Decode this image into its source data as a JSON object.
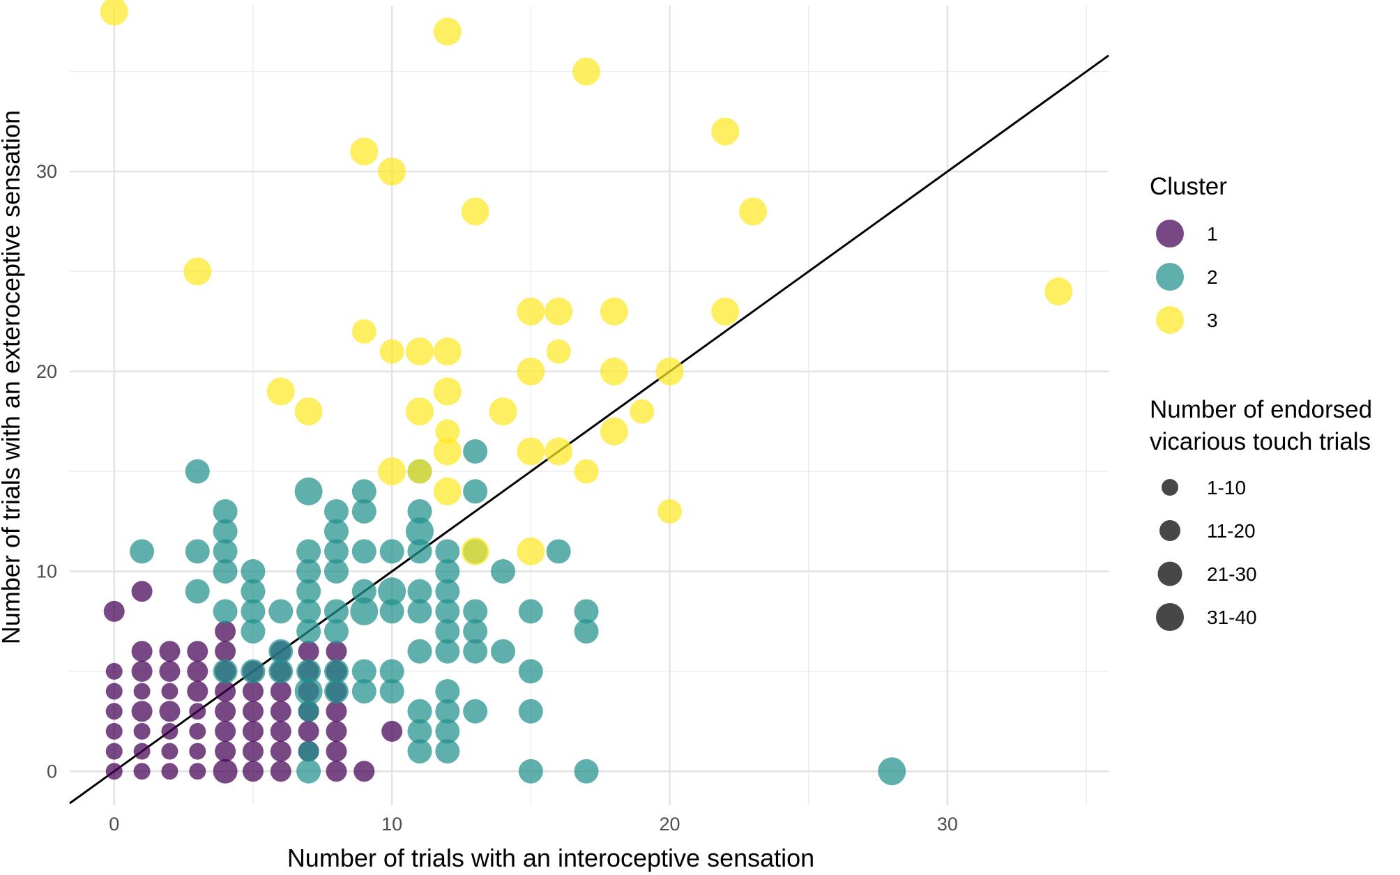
{
  "chart_data": {
    "type": "scatter",
    "title": "",
    "xlabel": "Number of trials with an interoceptive sensation",
    "ylabel": "Number of trials with an exteroceptive sensation",
    "xlim": [
      -1.6,
      35.8
    ],
    "ylim": [
      -1.7,
      38.3
    ],
    "xticks": [
      0,
      10,
      20,
      30
    ],
    "yticks": [
      0,
      10,
      20,
      30
    ],
    "grid": true,
    "reference_line": {
      "slope": 1,
      "intercept": 0,
      "color": "#000000"
    },
    "legends": {
      "color": {
        "title": "Cluster",
        "entries": [
          {
            "label": "1",
            "color": "#440154"
          },
          {
            "label": "2",
            "color": "#21908C"
          },
          {
            "label": "3",
            "color": "#FDE725"
          }
        ]
      },
      "size": {
        "title_lines": [
          "Number of endorsed",
          "vicarious touch trials"
        ],
        "entries": [
          {
            "label": "1-10",
            "size": 1
          },
          {
            "label": "11-20",
            "size": 2
          },
          {
            "label": "21-30",
            "size": 3
          },
          {
            "label": "31-40",
            "size": 4
          }
        ]
      }
    },
    "series": [
      {
        "name": "Cluster 1",
        "color": "#440154",
        "points": [
          [
            0,
            8,
            2
          ],
          [
            0,
            5,
            1
          ],
          [
            0,
            4,
            1
          ],
          [
            0,
            3,
            1
          ],
          [
            0,
            2,
            1
          ],
          [
            0,
            1,
            1
          ],
          [
            0,
            0,
            1
          ],
          [
            1,
            9,
            2
          ],
          [
            1,
            6,
            2
          ],
          [
            1,
            5,
            2
          ],
          [
            1,
            4,
            1
          ],
          [
            1,
            3,
            2
          ],
          [
            1,
            2,
            1
          ],
          [
            1,
            1,
            1
          ],
          [
            1,
            0,
            1
          ],
          [
            2,
            6,
            2
          ],
          [
            2,
            5,
            2
          ],
          [
            2,
            4,
            1
          ],
          [
            2,
            3,
            2
          ],
          [
            2,
            2,
            1
          ],
          [
            2,
            1,
            1
          ],
          [
            2,
            0,
            1
          ],
          [
            3,
            6,
            2
          ],
          [
            3,
            5,
            2
          ],
          [
            3,
            4,
            2
          ],
          [
            3,
            3,
            1
          ],
          [
            3,
            2,
            1
          ],
          [
            3,
            1,
            1
          ],
          [
            3,
            0,
            1
          ],
          [
            4,
            7,
            2
          ],
          [
            4,
            6,
            2
          ],
          [
            4,
            5,
            2
          ],
          [
            4,
            4,
            2
          ],
          [
            4,
            3,
            2
          ],
          [
            4,
            2,
            2
          ],
          [
            4,
            1,
            2
          ],
          [
            4,
            0,
            3
          ],
          [
            5,
            5,
            2
          ],
          [
            5,
            4,
            2
          ],
          [
            5,
            3,
            2
          ],
          [
            5,
            2,
            2
          ],
          [
            5,
            1,
            2
          ],
          [
            5,
            0,
            2
          ],
          [
            6,
            6,
            2
          ],
          [
            6,
            5,
            2
          ],
          [
            6,
            4,
            2
          ],
          [
            6,
            3,
            2
          ],
          [
            6,
            2,
            2
          ],
          [
            6,
            1,
            2
          ],
          [
            6,
            0,
            2
          ],
          [
            7,
            6,
            2
          ],
          [
            7,
            5,
            2
          ],
          [
            7,
            4,
            2
          ],
          [
            7,
            3,
            2
          ],
          [
            7,
            2,
            2
          ],
          [
            7,
            1,
            2
          ],
          [
            8,
            6,
            2
          ],
          [
            8,
            5,
            2
          ],
          [
            8,
            4,
            2
          ],
          [
            8,
            3,
            2
          ],
          [
            8,
            2,
            2
          ],
          [
            8,
            1,
            2
          ],
          [
            8,
            0,
            2
          ],
          [
            9,
            0,
            2
          ],
          [
            10,
            2,
            2
          ]
        ]
      },
      {
        "name": "Cluster 2",
        "color": "#21908C",
        "points": [
          [
            1,
            11,
            3
          ],
          [
            3,
            15,
            3
          ],
          [
            3,
            11,
            3
          ],
          [
            3,
            9,
            3
          ],
          [
            4,
            13,
            3
          ],
          [
            4,
            12,
            3
          ],
          [
            4,
            11,
            3
          ],
          [
            4,
            10,
            3
          ],
          [
            4,
            8,
            3
          ],
          [
            4,
            5,
            3
          ],
          [
            5,
            10,
            3
          ],
          [
            5,
            9,
            3
          ],
          [
            5,
            8,
            3
          ],
          [
            5,
            7,
            3
          ],
          [
            5,
            5,
            3
          ],
          [
            6,
            8,
            3
          ],
          [
            6,
            6,
            3
          ],
          [
            6,
            5,
            3
          ],
          [
            7,
            14,
            4
          ],
          [
            7,
            11,
            3
          ],
          [
            7,
            10,
            3
          ],
          [
            7,
            9,
            3
          ],
          [
            7,
            8,
            3
          ],
          [
            7,
            7,
            3
          ],
          [
            7,
            5,
            3
          ],
          [
            7,
            4,
            4
          ],
          [
            7,
            3,
            2
          ],
          [
            7,
            1,
            2
          ],
          [
            7,
            0,
            3
          ],
          [
            8,
            13,
            3
          ],
          [
            8,
            12,
            3
          ],
          [
            8,
            11,
            3
          ],
          [
            8,
            10,
            3
          ],
          [
            8,
            8,
            3
          ],
          [
            8,
            7,
            3
          ],
          [
            8,
            5,
            3
          ],
          [
            8,
            4,
            3
          ],
          [
            9,
            14,
            3
          ],
          [
            9,
            13,
            3
          ],
          [
            9,
            11,
            3
          ],
          [
            9,
            9,
            3
          ],
          [
            9,
            8,
            4
          ],
          [
            9,
            5,
            3
          ],
          [
            9,
            4,
            3
          ],
          [
            10,
            11,
            3
          ],
          [
            10,
            9,
            4
          ],
          [
            10,
            8,
            3
          ],
          [
            10,
            5,
            3
          ],
          [
            10,
            4,
            3
          ],
          [
            11,
            15,
            3
          ],
          [
            11,
            13,
            3
          ],
          [
            11,
            12,
            4
          ],
          [
            11,
            11,
            3
          ],
          [
            11,
            9,
            3
          ],
          [
            11,
            8,
            3
          ],
          [
            11,
            6,
            3
          ],
          [
            11,
            3,
            3
          ],
          [
            11,
            2,
            3
          ],
          [
            11,
            1,
            3
          ],
          [
            12,
            11,
            3
          ],
          [
            12,
            10,
            3
          ],
          [
            12,
            9,
            3
          ],
          [
            12,
            8,
            3
          ],
          [
            12,
            7,
            3
          ],
          [
            12,
            6,
            3
          ],
          [
            12,
            4,
            3
          ],
          [
            12,
            3,
            3
          ],
          [
            12,
            2,
            3
          ],
          [
            12,
            1,
            3
          ],
          [
            13,
            16,
            3
          ],
          [
            13,
            14,
            3
          ],
          [
            13,
            11,
            3
          ],
          [
            13,
            8,
            3
          ],
          [
            13,
            7,
            3
          ],
          [
            13,
            6,
            3
          ],
          [
            13,
            3,
            3
          ],
          [
            14,
            10,
            3
          ],
          [
            14,
            6,
            3
          ],
          [
            15,
            8,
            3
          ],
          [
            15,
            5,
            3
          ],
          [
            15,
            3,
            3
          ],
          [
            15,
            0,
            3
          ],
          [
            16,
            11,
            3
          ],
          [
            17,
            8,
            3
          ],
          [
            17,
            7,
            3
          ],
          [
            17,
            0,
            3
          ],
          [
            28,
            0,
            4
          ]
        ]
      },
      {
        "name": "Cluster 3",
        "color": "#FDE725",
        "points": [
          [
            0,
            38,
            4
          ],
          [
            3,
            25,
            4
          ],
          [
            6,
            19,
            4
          ],
          [
            7,
            18,
            4
          ],
          [
            9,
            31,
            4
          ],
          [
            9,
            22,
            3
          ],
          [
            10,
            30,
            4
          ],
          [
            10,
            21,
            3
          ],
          [
            10,
            15,
            4
          ],
          [
            11,
            21,
            4
          ],
          [
            11,
            18,
            4
          ],
          [
            11,
            15,
            3
          ],
          [
            12,
            37,
            4
          ],
          [
            12,
            21,
            4
          ],
          [
            12,
            19,
            4
          ],
          [
            12,
            17,
            3
          ],
          [
            12,
            16,
            4
          ],
          [
            12,
            14,
            4
          ],
          [
            13,
            28,
            4
          ],
          [
            13,
            11,
            4
          ],
          [
            14,
            18,
            4
          ],
          [
            15,
            23,
            4
          ],
          [
            15,
            20,
            4
          ],
          [
            15,
            16,
            4
          ],
          [
            15,
            11,
            4
          ],
          [
            16,
            23,
            4
          ],
          [
            16,
            21,
            3
          ],
          [
            16,
            16,
            4
          ],
          [
            17,
            35,
            4
          ],
          [
            17,
            15,
            3
          ],
          [
            18,
            23,
            4
          ],
          [
            18,
            20,
            4
          ],
          [
            18,
            17,
            4
          ],
          [
            19,
            18,
            3
          ],
          [
            20,
            20,
            4
          ],
          [
            20,
            13,
            3
          ],
          [
            22,
            32,
            4
          ],
          [
            22,
            23,
            4
          ],
          [
            23,
            28,
            4
          ],
          [
            34,
            24,
            4
          ]
        ]
      }
    ]
  }
}
